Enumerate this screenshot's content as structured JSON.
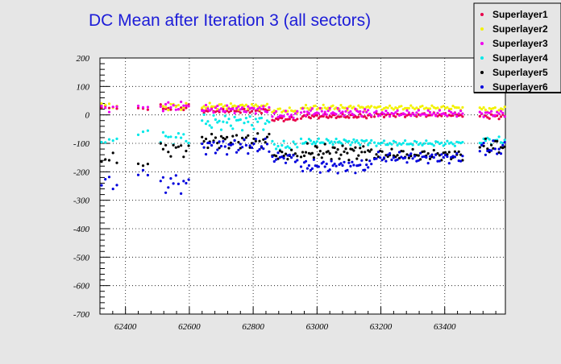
{
  "chart_data": {
    "type": "scatter",
    "title": "DC Mean after Iteration 3 (all sectors)",
    "xlabel": "",
    "ylabel": "",
    "xlim": [
      62320,
      63590
    ],
    "ylim": [
      -700,
      200
    ],
    "x_ticks": [
      62400,
      62600,
      62800,
      63000,
      63200,
      63400
    ],
    "y_ticks": [
      200,
      100,
      0,
      -100,
      -200,
      -300,
      -400,
      -500,
      -600,
      -700
    ],
    "grid": true,
    "legend_position": "top-right",
    "series": [
      {
        "name": "Superlayer1",
        "color": "#e8004a",
        "segments": [
          {
            "start": 62325,
            "end": 62380,
            "step": 12,
            "base": 25,
            "amp": 8
          },
          {
            "start": 62440,
            "end": 62470,
            "step": 15,
            "base": 20,
            "amp": 5
          },
          {
            "start": 62510,
            "end": 62600,
            "step": 8,
            "base": 25,
            "amp": 12
          },
          {
            "start": 62640,
            "end": 62850,
            "step": 6,
            "base": 15,
            "amp": 10
          },
          {
            "start": 62860,
            "end": 62940,
            "step": 6,
            "base": -15,
            "amp": 8
          },
          {
            "start": 62950,
            "end": 63170,
            "step": 5,
            "base": -5,
            "amp": 8
          },
          {
            "start": 63180,
            "end": 63460,
            "step": 6,
            "base": 0,
            "amp": 8
          },
          {
            "start": 63510,
            "end": 63590,
            "step": 6,
            "base": -5,
            "amp": 10
          }
        ]
      },
      {
        "name": "Superlayer2",
        "color": "#f2f200",
        "segments": [
          {
            "start": 62325,
            "end": 62380,
            "step": 12,
            "base": 35,
            "amp": 12
          },
          {
            "start": 62510,
            "end": 62600,
            "step": 8,
            "base": 30,
            "amp": 15
          },
          {
            "start": 62640,
            "end": 62850,
            "step": 6,
            "base": 30,
            "amp": 12
          },
          {
            "start": 62860,
            "end": 62940,
            "step": 6,
            "base": 15,
            "amp": 10
          },
          {
            "start": 62950,
            "end": 63170,
            "step": 5,
            "base": 25,
            "amp": 10
          },
          {
            "start": 63180,
            "end": 63460,
            "step": 6,
            "base": 25,
            "amp": 8
          },
          {
            "start": 63510,
            "end": 63590,
            "step": 6,
            "base": 20,
            "amp": 10
          }
        ]
      },
      {
        "name": "Superlayer3",
        "color": "#ee00ee",
        "segments": [
          {
            "start": 62325,
            "end": 62380,
            "step": 12,
            "base": 25,
            "amp": 15
          },
          {
            "start": 62440,
            "end": 62470,
            "step": 15,
            "base": 30,
            "amp": 5
          },
          {
            "start": 62510,
            "end": 62600,
            "step": 8,
            "base": 30,
            "amp": 20
          },
          {
            "start": 62640,
            "end": 62850,
            "step": 6,
            "base": 20,
            "amp": 15
          },
          {
            "start": 62860,
            "end": 62940,
            "step": 6,
            "base": 0,
            "amp": 15
          },
          {
            "start": 62950,
            "end": 63170,
            "step": 5,
            "base": 10,
            "amp": 15
          },
          {
            "start": 63180,
            "end": 63460,
            "step": 6,
            "base": 5,
            "amp": 12
          },
          {
            "start": 63510,
            "end": 63590,
            "step": 6,
            "base": 5,
            "amp": 12
          }
        ]
      },
      {
        "name": "Superlayer4",
        "color": "#00e8e8",
        "segments": [
          {
            "start": 62325,
            "end": 62380,
            "step": 12,
            "base": -90,
            "amp": 10
          },
          {
            "start": 62440,
            "end": 62470,
            "step": 15,
            "base": -60,
            "amp": 10
          },
          {
            "start": 62510,
            "end": 62600,
            "step": 8,
            "base": -80,
            "amp": 25
          },
          {
            "start": 62640,
            "end": 62850,
            "step": 6,
            "base": -25,
            "amp": 30
          },
          {
            "start": 62860,
            "end": 62940,
            "step": 6,
            "base": -110,
            "amp": 20
          },
          {
            "start": 62950,
            "end": 63170,
            "step": 5,
            "base": -95,
            "amp": 12
          },
          {
            "start": 63180,
            "end": 63460,
            "step": 6,
            "base": -100,
            "amp": 10
          },
          {
            "start": 63510,
            "end": 63590,
            "step": 6,
            "base": -90,
            "amp": 15
          }
        ]
      },
      {
        "name": "Superlayer5",
        "color": "#000000",
        "segments": [
          {
            "start": 62325,
            "end": 62380,
            "step": 12,
            "base": -160,
            "amp": 30
          },
          {
            "start": 62440,
            "end": 62470,
            "step": 15,
            "base": -180,
            "amp": 20
          },
          {
            "start": 62510,
            "end": 62600,
            "step": 8,
            "base": -120,
            "amp": 30
          },
          {
            "start": 62640,
            "end": 62850,
            "step": 6,
            "base": -90,
            "amp": 30
          },
          {
            "start": 62860,
            "end": 62940,
            "step": 6,
            "base": -140,
            "amp": 20
          },
          {
            "start": 62950,
            "end": 63170,
            "step": 5,
            "base": -130,
            "amp": 30
          },
          {
            "start": 63180,
            "end": 63460,
            "step": 6,
            "base": -140,
            "amp": 20
          },
          {
            "start": 63510,
            "end": 63590,
            "step": 6,
            "base": -110,
            "amp": 30
          }
        ]
      },
      {
        "name": "Superlayer6",
        "color": "#0000dd",
        "segments": [
          {
            "start": 62325,
            "end": 62380,
            "step": 12,
            "base": -240,
            "amp": 30
          },
          {
            "start": 62440,
            "end": 62470,
            "step": 15,
            "base": -210,
            "amp": 20
          },
          {
            "start": 62510,
            "end": 62600,
            "step": 8,
            "base": -240,
            "amp": 40
          },
          {
            "start": 62640,
            "end": 62850,
            "step": 6,
            "base": -110,
            "amp": 30
          },
          {
            "start": 62860,
            "end": 62940,
            "step": 6,
            "base": -150,
            "amp": 20
          },
          {
            "start": 62950,
            "end": 63170,
            "step": 5,
            "base": -180,
            "amp": 25
          },
          {
            "start": 63180,
            "end": 63460,
            "step": 6,
            "base": -150,
            "amp": 20
          },
          {
            "start": 63510,
            "end": 63590,
            "step": 6,
            "base": -120,
            "amp": 30
          }
        ]
      }
    ]
  }
}
